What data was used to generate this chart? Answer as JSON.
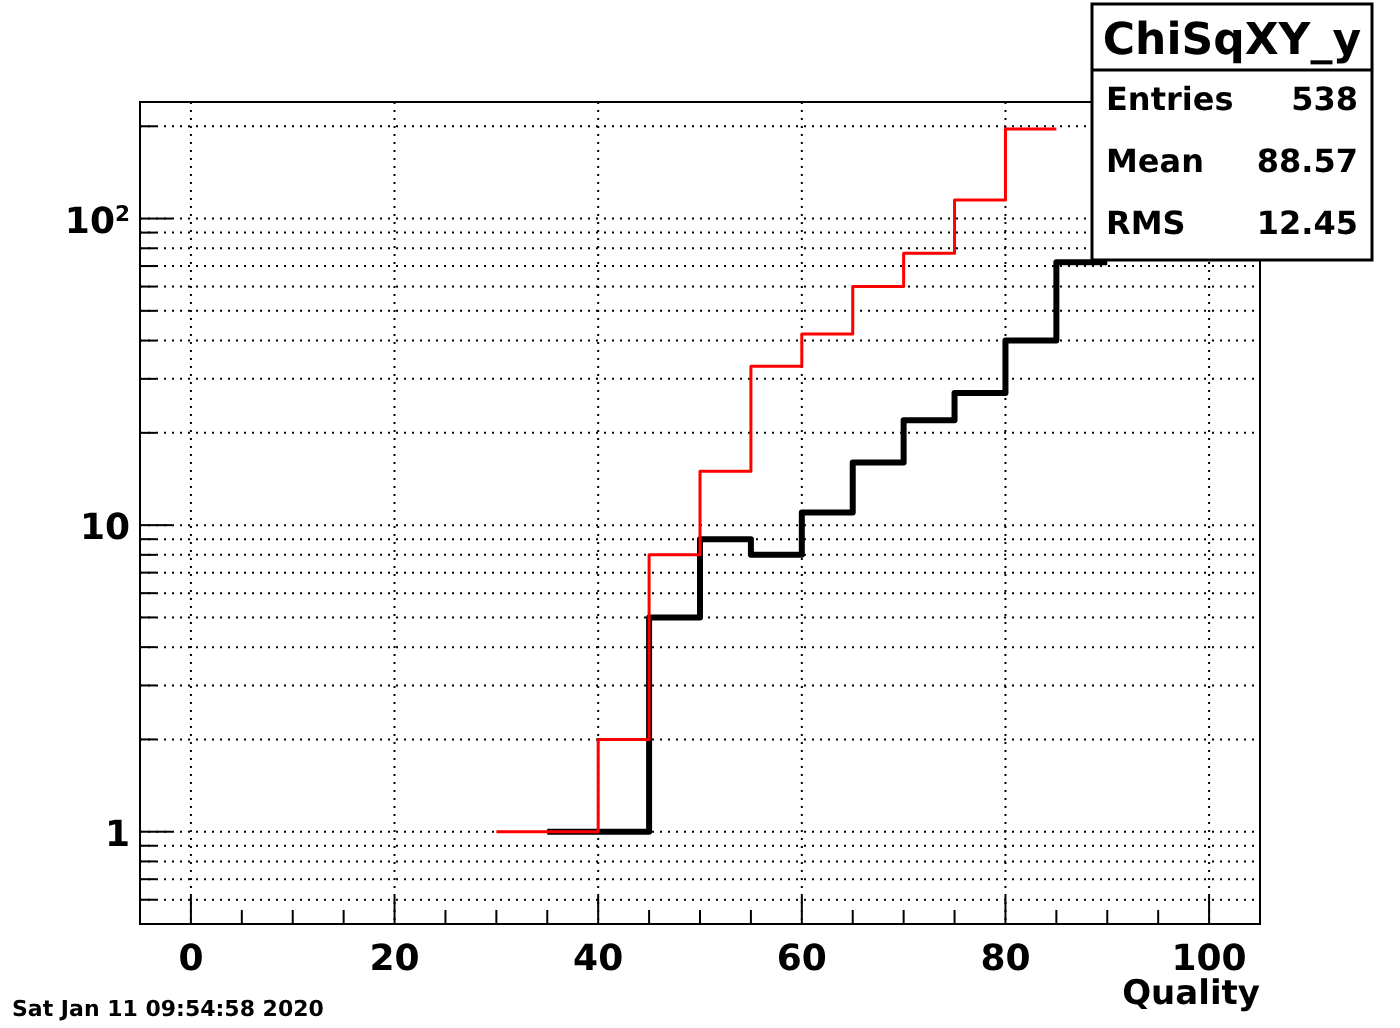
{
  "chart_data": {
    "type": "step",
    "title": "ChiSqXY_y",
    "xlabel": "Quality",
    "series": [
      {
        "color": "#000000",
        "x": [
          35,
          40,
          45,
          50,
          55,
          60,
          65,
          70,
          75,
          80,
          85,
          90
        ],
        "values": [
          1,
          1,
          5,
          9,
          8,
          11,
          16,
          22,
          27,
          40,
          72,
          72
        ]
      },
      {
        "color": "#ff0000",
        "x": [
          30,
          35,
          40,
          45,
          50,
          55,
          60,
          65,
          70,
          75,
          80,
          85
        ],
        "values": [
          1,
          1,
          2,
          8,
          15,
          33,
          42,
          60,
          77,
          115,
          196,
          196
        ]
      }
    ],
    "log": "y",
    "xlim": [
      -5,
      105
    ],
    "ylim": [
      0.5,
      240
    ],
    "xticks": [
      0,
      {
        "value": 5,
        "label": null
      },
      {
        "value": 10,
        "label": null
      },
      {
        "value": 15,
        "label": null
      },
      20,
      {
        "value": 25,
        "label": null
      },
      {
        "value": 30,
        "label": null
      },
      {
        "value": 35,
        "label": null
      },
      40,
      {
        "value": 45,
        "label": null
      },
      {
        "value": 50,
        "label": null
      },
      {
        "value": 55,
        "label": null
      },
      60,
      {
        "value": 65,
        "label": null
      },
      {
        "value": 70,
        "label": null
      },
      {
        "value": 75,
        "label": null
      },
      80,
      {
        "value": 85,
        "label": null
      },
      {
        "value": 90,
        "label": null
      },
      {
        "value": 95,
        "label": null
      },
      100
    ],
    "yticks": [
      {
        "value": 0.6,
        "label": null
      },
      {
        "value": 0.7,
        "label": null
      },
      {
        "value": 0.8,
        "label": null
      },
      {
        "value": 0.9,
        "label": null
      },
      1,
      {
        "value": 2,
        "label": null
      },
      {
        "value": 3,
        "label": null
      },
      {
        "value": 4,
        "label": null
      },
      {
        "value": 5,
        "label": null
      },
      {
        "value": 6,
        "label": null
      },
      {
        "value": 7,
        "label": null
      },
      {
        "value": 8,
        "label": null
      },
      {
        "value": 9,
        "label": null
      },
      10,
      {
        "value": 20,
        "label": null
      },
      {
        "value": 30,
        "label": null
      },
      {
        "value": 40,
        "label": null
      },
      {
        "value": 50,
        "label": null
      },
      {
        "value": 60,
        "label": null
      },
      {
        "value": 70,
        "label": null
      },
      {
        "value": 80,
        "label": null
      },
      {
        "value": 90,
        "label": null
      },
      {
        "value": 100,
        "label": "10$^{2}$"
      },
      {
        "value": 200,
        "label": null
      }
    ],
    "grid": true,
    "annotations": [
      "Sat Jan 11 09:54:58 2020",
      "Entries",
      "538",
      "Mean",
      "88.57",
      "RMS",
      "12.45"
    ]
  }
}
